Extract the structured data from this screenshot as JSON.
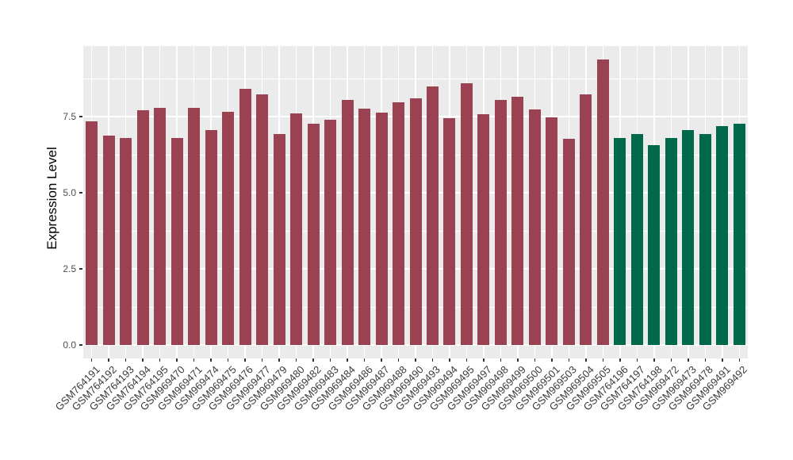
{
  "chart_data": {
    "type": "bar",
    "title": "",
    "xlabel": "",
    "ylabel": "Expression Level",
    "ylim": [
      0,
      9.82
    ],
    "yticks": [
      0.0,
      2.5,
      5.0,
      7.5
    ],
    "ytick_labels": [
      "0.0",
      "2.5",
      "5.0",
      "7.5"
    ],
    "minor_gridlines": [
      1.25,
      3.75,
      6.25,
      8.75
    ],
    "grid": true,
    "legend_position": "none",
    "panel_background": "#EBEBEB",
    "gridline_color": "#FFFFFF",
    "tick_color": "#333333",
    "palette": [
      "#9A4252",
      "#00694B"
    ],
    "categories": [
      "GSM764191",
      "GSM764192",
      "GSM764193",
      "GSM764194",
      "GSM764195",
      "GSM969470",
      "GSM969471",
      "GSM969474",
      "GSM969475",
      "GSM969476",
      "GSM969477",
      "GSM969479",
      "GSM969480",
      "GSM969482",
      "GSM969483",
      "GSM969484",
      "GSM969486",
      "GSM969487",
      "GSM969488",
      "GSM969490",
      "GSM969493",
      "GSM969494",
      "GSM969495",
      "GSM969497",
      "GSM969498",
      "GSM969499",
      "GSM969500",
      "GSM969501",
      "GSM969503",
      "GSM969504",
      "GSM969505",
      "GSM764196",
      "GSM764197",
      "GSM764198",
      "GSM969472",
      "GSM969473",
      "GSM969478",
      "GSM969491",
      "GSM969492"
    ],
    "values": [
      7.35,
      6.88,
      6.8,
      7.71,
      7.79,
      6.8,
      7.79,
      7.07,
      7.66,
      8.42,
      8.22,
      6.94,
      7.6,
      7.27,
      7.4,
      8.05,
      7.77,
      7.64,
      7.96,
      8.1,
      8.49,
      7.44,
      8.59,
      7.57,
      8.05,
      8.16,
      7.73,
      7.48,
      6.77,
      8.23,
      9.38,
      6.8,
      6.92,
      6.57,
      6.81,
      7.05,
      6.94,
      7.19,
      7.27
    ],
    "bar_color_index": [
      0,
      0,
      0,
      0,
      0,
      0,
      0,
      0,
      0,
      0,
      0,
      0,
      0,
      0,
      0,
      0,
      0,
      0,
      0,
      0,
      0,
      0,
      0,
      0,
      0,
      0,
      0,
      0,
      0,
      0,
      0,
      1,
      1,
      1,
      1,
      1,
      1,
      1,
      1
    ]
  }
}
